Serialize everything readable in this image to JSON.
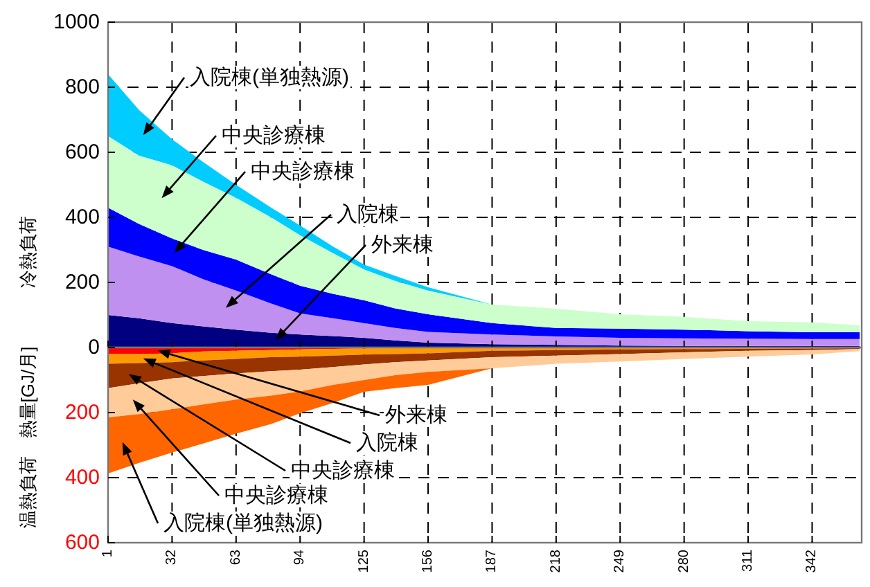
{
  "chart_data": [
    {
      "type": "area",
      "stacked": true,
      "ylabel": "冷熱負荷",
      "tick_labels": "y",
      "x": [
        1,
        16,
        32,
        47,
        63,
        80,
        94,
        110,
        125,
        140,
        156,
        187,
        218,
        249,
        280,
        311,
        342,
        365
      ],
      "xlim": [
        1,
        366
      ],
      "xticks": [
        1,
        32,
        63,
        94,
        125,
        156,
        187,
        218,
        249,
        280,
        311,
        342
      ],
      "ylim": [
        0,
        1000
      ],
      "yticks": [
        0,
        200,
        400,
        600,
        800,
        1000
      ],
      "grid": true,
      "series": [
        {
          "name": "外来棟",
          "color": "#000080",
          "values": [
            100,
            90,
            75,
            65,
            55,
            45,
            40,
            35,
            30,
            22,
            15,
            10,
            8,
            6,
            5,
            5,
            5,
            5
          ]
        },
        {
          "name": "入院棟",
          "color": "#c090f0",
          "values": [
            210,
            190,
            175,
            145,
            120,
            90,
            65,
            55,
            45,
            38,
            33,
            30,
            26,
            24,
            23,
            22,
            21,
            21
          ]
        },
        {
          "name": "中央診療棟",
          "color": "#0000ff",
          "values": [
            120,
            100,
            85,
            90,
            95,
            90,
            85,
            75,
            70,
            60,
            54,
            35,
            26,
            28,
            27,
            23,
            21,
            21
          ]
        },
        {
          "name": "中央診療棟",
          "color": "#ccffcc",
          "values": [
            220,
            210,
            225,
            210,
            190,
            175,
            155,
            125,
            95,
            85,
            73,
            57,
            59,
            44,
            39,
            31,
            30,
            21
          ]
        },
        {
          "name": "入院棟(単独熱源)",
          "color": "#00ccff",
          "values": [
            190,
            140,
            80,
            60,
            40,
            30,
            30,
            20,
            15,
            15,
            10,
            0,
            0,
            0,
            0,
            0,
            0,
            0
          ]
        }
      ]
    },
    {
      "type": "area",
      "stacked": true,
      "ylabel": "温熱負荷　熱量[GJ/月]",
      "x": [
        1,
        16,
        32,
        47,
        63,
        80,
        94,
        110,
        125,
        140,
        156,
        187,
        218,
        249,
        280,
        311,
        342,
        365
      ],
      "xlim": [
        1,
        366
      ],
      "xticks": [
        1,
        32,
        63,
        94,
        125,
        156,
        187,
        218,
        249,
        280,
        311,
        342
      ],
      "ylim": [
        600,
        0
      ],
      "yticks": [
        {
          "value": 0,
          "label": null
        },
        200,
        400,
        600
      ],
      "grid": true,
      "series": [
        {
          "name": "外来棟",
          "color": "#ff0000",
          "values": [
            20,
            20,
            18,
            12,
            10,
            8,
            6,
            4,
            3,
            2,
            2,
            1,
            1,
            1,
            1,
            1,
            1,
            1
          ]
        },
        {
          "name": "入院棟",
          "color": "#ff9900",
          "values": [
            30,
            28,
            27,
            28,
            25,
            22,
            22,
            21,
            19,
            18,
            16,
            9,
            7,
            5,
            4,
            3,
            2,
            1
          ]
        },
        {
          "name": "中央診療棟",
          "color": "#993300",
          "values": [
            75,
            62,
            50,
            48,
            45,
            43,
            40,
            35,
            30,
            25,
            22,
            20,
            17,
            14,
            10,
            6,
            5,
            3
          ]
        },
        {
          "name": "中央診療棟",
          "color": "#ffcc99",
          "values": [
            90,
            95,
            95,
            87,
            80,
            75,
            67,
            55,
            48,
            40,
            35,
            34,
            25,
            23,
            20,
            18,
            13,
            6
          ]
        },
        {
          "name": "入院棟(単独熱源)",
          "color": "#ff6600",
          "values": [
            172,
            150,
            133,
            120,
            105,
            87,
            67,
            55,
            36,
            40,
            40,
            0,
            0,
            0,
            0,
            0,
            0,
            0
          ]
        }
      ]
    }
  ]
}
